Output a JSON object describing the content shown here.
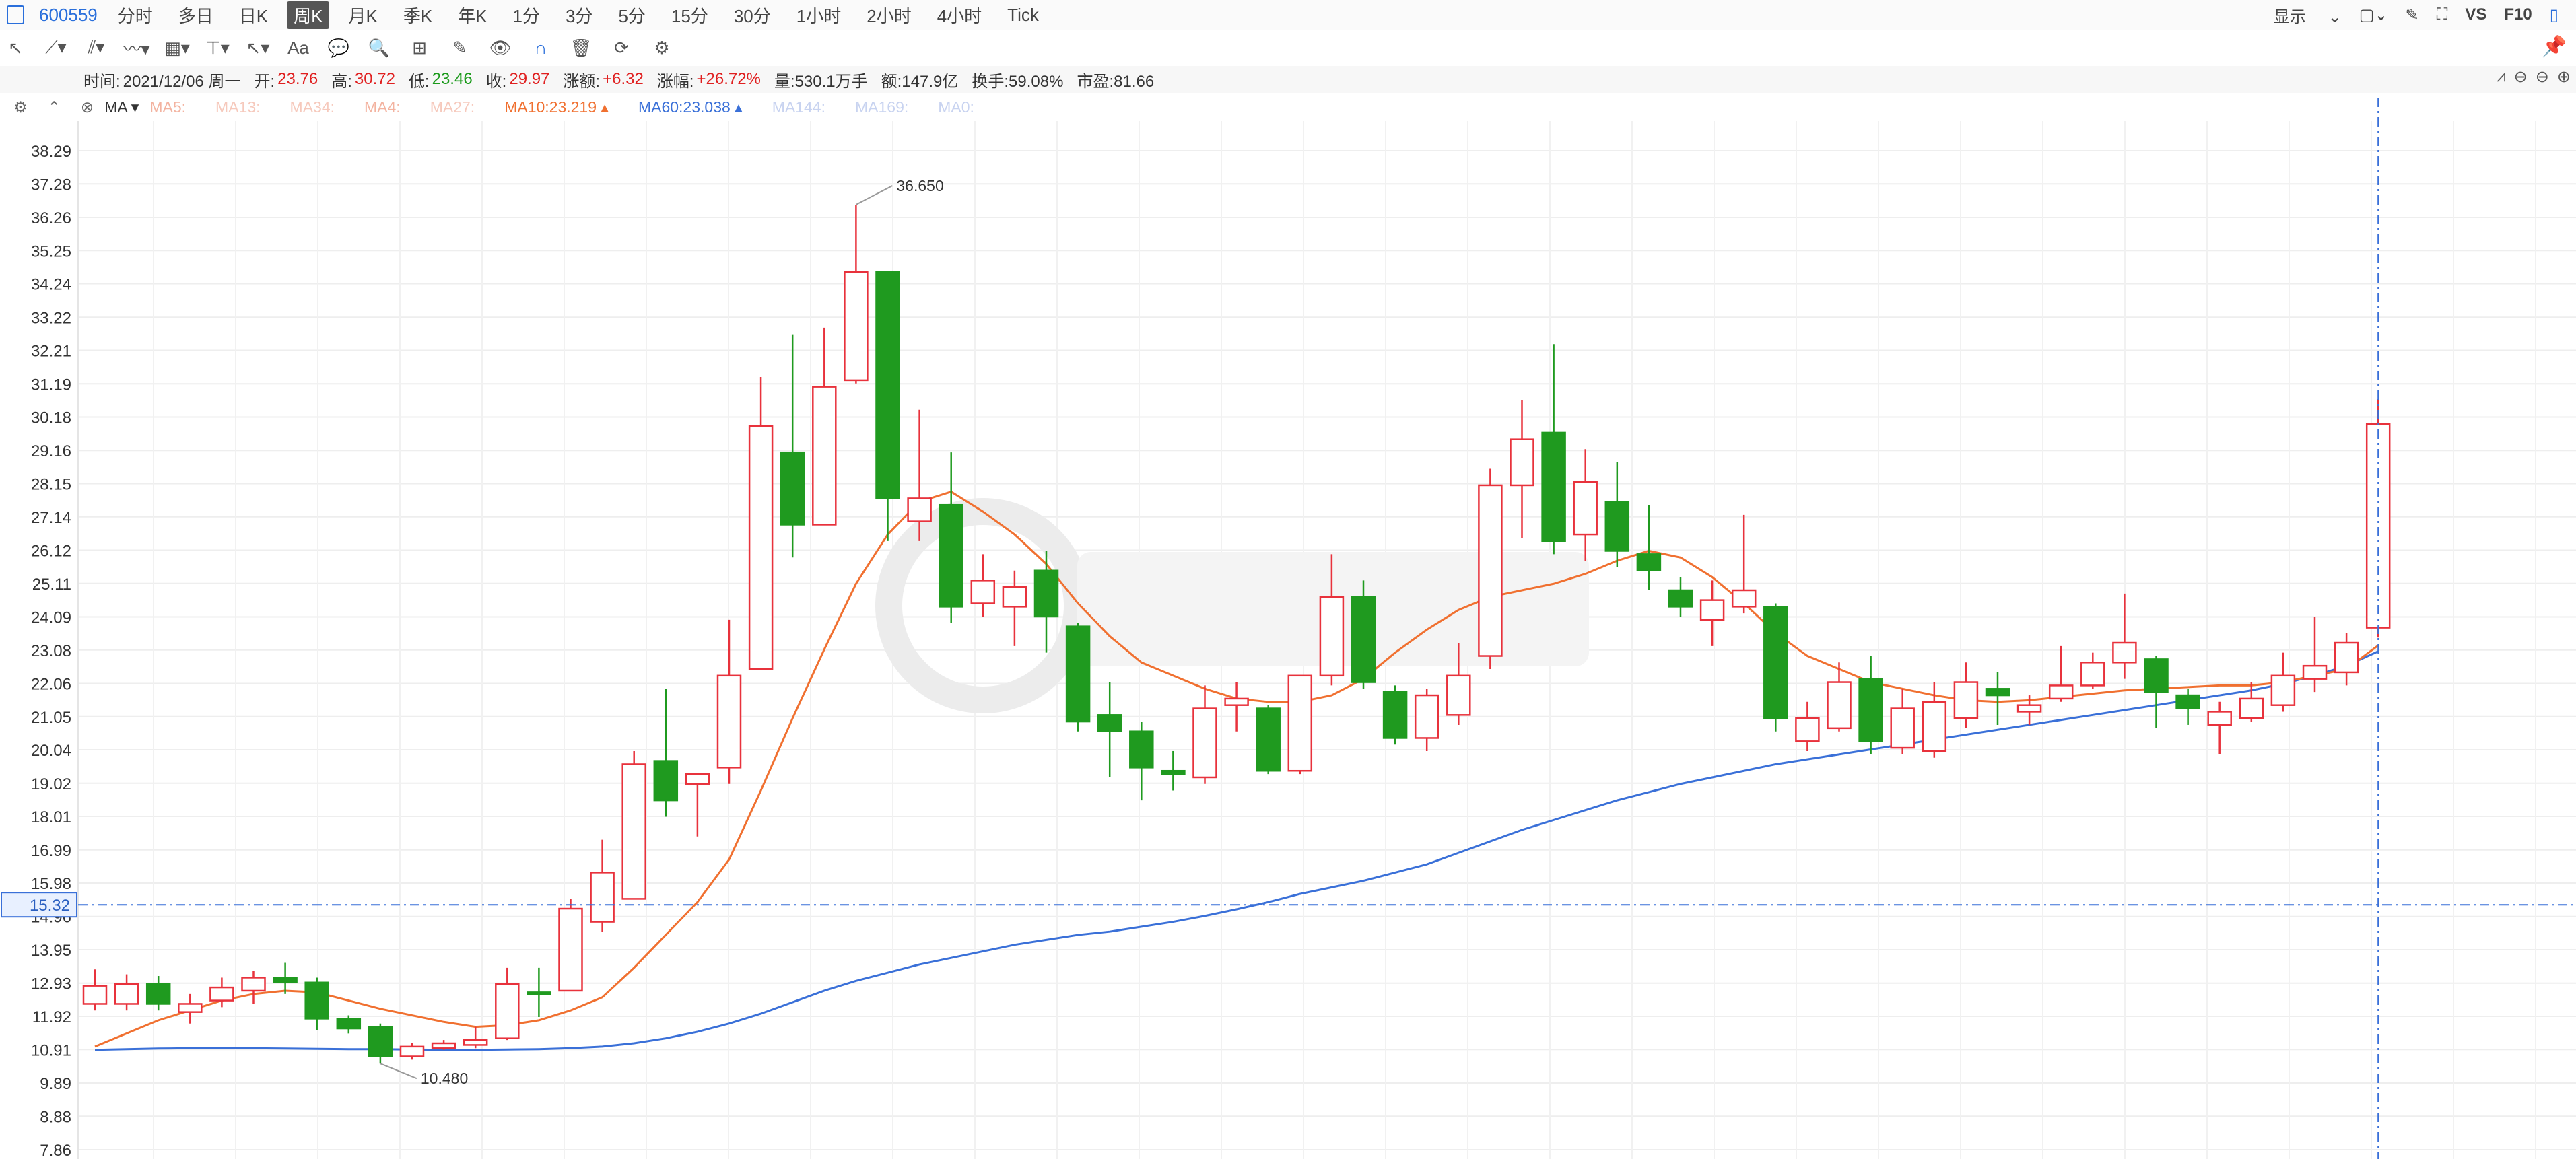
{
  "toolbar_top": {
    "ticker": "600559",
    "periods": [
      "分时",
      "多日",
      "日K",
      "周K",
      "月K",
      "季K",
      "年K",
      "1分",
      "3分",
      "5分",
      "15分",
      "30分",
      "1小时",
      "2小时",
      "4小时",
      "Tick"
    ],
    "active_period": "周K",
    "display_label": "显示",
    "vs_label": "VS",
    "f10_label": "F10"
  },
  "info": {
    "time_label": "时间:",
    "time": "2021/12/06 周一",
    "open_label": "开:",
    "open": "23.76",
    "high_label": "高:",
    "high": "30.72",
    "low_label": "低:",
    "low": "23.46",
    "close_label": "收:",
    "close": "29.97",
    "chg_label": "涨额:",
    "chg": "+6.32",
    "pct_label": "涨幅:",
    "pct": "+26.72%",
    "vol": "量:530.1万手",
    "amt": "额:147.9亿",
    "turnover": "换手:59.08%",
    "pe": "市盈:81.66"
  },
  "ma_bar": {
    "selector": "MA",
    "items": [
      {
        "label": "MA5:",
        "color": "#f3b3a0"
      },
      {
        "label": "MA13:",
        "color": "#f6c9bc"
      },
      {
        "label": "MA34:",
        "color": "#f6c9bc"
      },
      {
        "label": "MA4:",
        "color": "#f3b3a0"
      },
      {
        "label": "MA27:",
        "color": "#f6c9bc"
      },
      {
        "label": "MA10:23.219",
        "color": "#f07030"
      },
      {
        "label": "MA60:23.038",
        "color": "#3a70d8"
      },
      {
        "label": "MA144:",
        "color": "#c8d3f0"
      },
      {
        "label": "MA169:",
        "color": "#c8d3f0"
      },
      {
        "label": "MA0:",
        "color": "#c8d3f0"
      }
    ]
  },
  "chart_data": {
    "type": "candlestick",
    "period": "weekly",
    "y_ticks": [
      "38.29",
      "37.28",
      "36.26",
      "35.25",
      "34.24",
      "33.22",
      "32.21",
      "31.19",
      "30.18",
      "29.16",
      "28.15",
      "27.14",
      "26.12",
      "25.11",
      "24.09",
      "23.08",
      "22.06",
      "21.05",
      "20.04",
      "19.02",
      "18.01",
      "16.99",
      "15.98",
      "14.96",
      "13.95",
      "12.93",
      "11.92",
      "10.91",
      "9.89",
      "8.88",
      "7.86"
    ],
    "ylim": [
      7.86,
      38.29
    ],
    "crosshair_price": "15.32",
    "annotations": [
      {
        "text": "36.650",
        "value": 36.65
      },
      {
        "text": "10.480",
        "value": 10.48
      }
    ],
    "candles": [
      {
        "o": 12.3,
        "h": 13.35,
        "c": 12.85,
        "l": 12.1
      },
      {
        "o": 12.3,
        "h": 13.2,
        "c": 12.9,
        "l": 12.1
      },
      {
        "o": 12.9,
        "h": 13.15,
        "c": 12.3,
        "l": 12.1
      },
      {
        "o": 12.05,
        "h": 12.6,
        "c": 12.3,
        "l": 11.7
      },
      {
        "o": 12.4,
        "h": 13.1,
        "c": 12.8,
        "l": 12.2
      },
      {
        "o": 12.7,
        "h": 13.3,
        "c": 13.1,
        "l": 12.3
      },
      {
        "o": 13.1,
        "h": 13.55,
        "c": 12.95,
        "l": 12.6
      },
      {
        "o": 12.95,
        "h": 13.1,
        "c": 11.85,
        "l": 11.5
      },
      {
        "o": 11.85,
        "h": 11.95,
        "c": 11.55,
        "l": 11.4
      },
      {
        "o": 11.6,
        "h": 11.7,
        "c": 10.7,
        "l": 10.48
      },
      {
        "o": 10.7,
        "h": 11.1,
        "c": 11.0,
        "l": 10.6
      },
      {
        "o": 10.95,
        "h": 11.2,
        "c": 11.1,
        "l": 10.9
      },
      {
        "o": 11.05,
        "h": 11.6,
        "c": 11.2,
        "l": 10.95
      },
      {
        "o": 11.25,
        "h": 13.4,
        "c": 12.9,
        "l": 11.2
      },
      {
        "o": 12.65,
        "h": 13.4,
        "c": 12.6,
        "l": 11.9
      },
      {
        "o": 12.7,
        "h": 15.5,
        "c": 15.2,
        "l": 12.7
      },
      {
        "o": 14.8,
        "h": 17.3,
        "c": 16.3,
        "l": 14.5
      },
      {
        "o": 15.5,
        "h": 20.0,
        "c": 19.6,
        "l": 15.5
      },
      {
        "o": 19.7,
        "h": 21.9,
        "c": 18.5,
        "l": 18.0
      },
      {
        "o": 19.0,
        "h": 19.3,
        "c": 19.3,
        "l": 17.4
      },
      {
        "o": 19.5,
        "h": 24.0,
        "c": 22.3,
        "l": 19.0
      },
      {
        "o": 22.5,
        "h": 31.4,
        "c": 29.9,
        "l": 22.5
      },
      {
        "o": 29.1,
        "h": 32.7,
        "c": 26.9,
        "l": 25.9
      },
      {
        "o": 26.9,
        "h": 32.9,
        "c": 31.1,
        "l": 26.9
      },
      {
        "o": 31.3,
        "h": 36.65,
        "c": 34.6,
        "l": 31.2
      },
      {
        "o": 34.6,
        "h": 34.6,
        "c": 27.7,
        "l": 26.4
      },
      {
        "o": 27.0,
        "h": 30.4,
        "c": 27.7,
        "l": 26.4
      },
      {
        "o": 27.5,
        "h": 29.1,
        "c": 24.4,
        "l": 23.9
      },
      {
        "o": 24.5,
        "h": 26.0,
        "c": 25.2,
        "l": 24.1
      },
      {
        "o": 24.4,
        "h": 25.5,
        "c": 25.0,
        "l": 23.2
      },
      {
        "o": 25.5,
        "h": 26.1,
        "c": 24.1,
        "l": 23.0
      },
      {
        "o": 23.8,
        "h": 23.9,
        "c": 20.9,
        "l": 20.6
      },
      {
        "o": 21.1,
        "h": 22.1,
        "c": 20.6,
        "l": 19.2
      },
      {
        "o": 20.6,
        "h": 20.9,
        "c": 19.5,
        "l": 18.5
      },
      {
        "o": 19.4,
        "h": 20.0,
        "c": 19.3,
        "l": 18.8
      },
      {
        "o": 19.2,
        "h": 22.0,
        "c": 21.3,
        "l": 19.0
      },
      {
        "o": 21.4,
        "h": 22.1,
        "c": 21.6,
        "l": 20.6
      },
      {
        "o": 21.3,
        "h": 21.4,
        "c": 19.4,
        "l": 19.3
      },
      {
        "o": 19.4,
        "h": 22.0,
        "c": 22.3,
        "l": 19.3
      },
      {
        "o": 22.3,
        "h": 26.0,
        "c": 24.7,
        "l": 22.0
      },
      {
        "o": 24.7,
        "h": 25.2,
        "c": 22.1,
        "l": 21.9
      },
      {
        "o": 21.8,
        "h": 22.0,
        "c": 20.4,
        "l": 20.2
      },
      {
        "o": 20.4,
        "h": 21.9,
        "c": 21.7,
        "l": 20.0
      },
      {
        "o": 21.1,
        "h": 23.3,
        "c": 22.3,
        "l": 20.8
      },
      {
        "o": 22.9,
        "h": 28.6,
        "c": 28.1,
        "l": 22.5
      },
      {
        "o": 28.1,
        "h": 30.7,
        "c": 29.5,
        "l": 26.5
      },
      {
        "o": 29.7,
        "h": 32.4,
        "c": 26.4,
        "l": 26.0
      },
      {
        "o": 26.6,
        "h": 29.2,
        "c": 28.2,
        "l": 25.8
      },
      {
        "o": 27.6,
        "h": 28.8,
        "c": 26.1,
        "l": 25.6
      },
      {
        "o": 26.0,
        "h": 27.5,
        "c": 25.5,
        "l": 24.9
      },
      {
        "o": 24.9,
        "h": 25.3,
        "c": 24.4,
        "l": 24.1
      },
      {
        "o": 24.0,
        "h": 25.2,
        "c": 24.6,
        "l": 23.2
      },
      {
        "o": 24.4,
        "h": 27.2,
        "c": 24.9,
        "l": 24.2
      },
      {
        "o": 24.4,
        "h": 24.5,
        "c": 21.0,
        "l": 20.6
      },
      {
        "o": 20.3,
        "h": 21.5,
        "c": 21.0,
        "l": 20.0
      },
      {
        "o": 20.7,
        "h": 22.7,
        "c": 22.1,
        "l": 20.6
      },
      {
        "o": 22.2,
        "h": 22.9,
        "c": 20.3,
        "l": 19.9
      },
      {
        "o": 20.1,
        "h": 21.9,
        "c": 21.3,
        "l": 19.9
      },
      {
        "o": 20.0,
        "h": 22.1,
        "c": 21.5,
        "l": 19.8
      },
      {
        "o": 21.0,
        "h": 22.7,
        "c": 22.1,
        "l": 20.7
      },
      {
        "o": 21.9,
        "h": 22.4,
        "c": 21.7,
        "l": 20.8
      },
      {
        "o": 21.2,
        "h": 21.7,
        "c": 21.4,
        "l": 20.8
      },
      {
        "o": 21.6,
        "h": 23.2,
        "c": 22.0,
        "l": 21.5
      },
      {
        "o": 22.0,
        "h": 23.0,
        "c": 22.7,
        "l": 21.9
      },
      {
        "o": 22.7,
        "h": 24.8,
        "c": 23.3,
        "l": 22.2
      },
      {
        "o": 22.8,
        "h": 22.9,
        "c": 21.8,
        "l": 20.7
      },
      {
        "o": 21.7,
        "h": 21.9,
        "c": 21.3,
        "l": 20.8
      },
      {
        "o": 20.8,
        "h": 21.5,
        "c": 21.2,
        "l": 19.9
      },
      {
        "o": 21.0,
        "h": 22.1,
        "c": 21.6,
        "l": 20.9
      },
      {
        "o": 21.4,
        "h": 23.0,
        "c": 22.3,
        "l": 21.2
      },
      {
        "o": 22.2,
        "h": 24.1,
        "c": 22.6,
        "l": 21.8
      },
      {
        "o": 22.4,
        "h": 23.6,
        "c": 23.3,
        "l": 22.0
      },
      {
        "o": 23.76,
        "h": 30.72,
        "c": 29.97,
        "l": 23.46
      }
    ],
    "ma10": [
      11.0,
      11.4,
      11.8,
      12.1,
      12.4,
      12.6,
      12.7,
      12.65,
      12.4,
      12.15,
      11.95,
      11.75,
      11.6,
      11.65,
      11.8,
      12.1,
      12.5,
      13.4,
      14.4,
      15.4,
      16.7,
      18.8,
      21.0,
      23.1,
      25.1,
      26.6,
      27.6,
      27.9,
      27.3,
      26.6,
      25.7,
      24.5,
      23.5,
      22.7,
      22.3,
      21.9,
      21.6,
      21.5,
      21.5,
      21.7,
      22.2,
      23.0,
      23.7,
      24.3,
      24.7,
      24.9,
      25.1,
      25.4,
      25.8,
      26.1,
      25.9,
      25.3,
      24.5,
      23.6,
      22.9,
      22.5,
      22.1,
      21.9,
      21.7,
      21.55,
      21.5,
      21.55,
      21.65,
      21.75,
      21.85,
      21.9,
      21.95,
      22.0,
      22.0,
      22.1,
      22.3,
      22.5,
      23.22
    ],
    "ma60": [
      10.9,
      10.92,
      10.94,
      10.95,
      10.95,
      10.95,
      10.94,
      10.93,
      10.92,
      10.92,
      10.91,
      10.9,
      10.9,
      10.91,
      10.92,
      10.95,
      11.0,
      11.1,
      11.25,
      11.45,
      11.7,
      12.0,
      12.35,
      12.7,
      13.0,
      13.25,
      13.5,
      13.7,
      13.9,
      14.1,
      14.25,
      14.4,
      14.5,
      14.65,
      14.8,
      14.98,
      15.18,
      15.4,
      15.65,
      15.85,
      16.05,
      16.3,
      16.55,
      16.9,
      17.25,
      17.6,
      17.9,
      18.2,
      18.5,
      18.75,
      19.0,
      19.2,
      19.4,
      19.6,
      19.75,
      19.9,
      20.05,
      20.2,
      20.35,
      20.5,
      20.65,
      20.8,
      20.95,
      21.1,
      21.25,
      21.4,
      21.55,
      21.7,
      21.85,
      22.05,
      22.3,
      22.6,
      23.04
    ]
  }
}
